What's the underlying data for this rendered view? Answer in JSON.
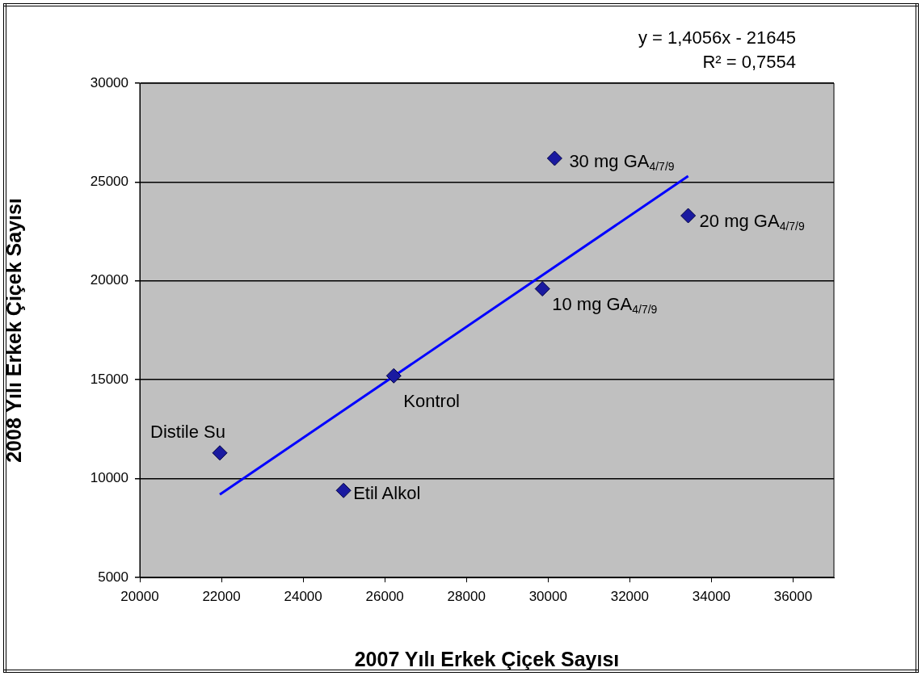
{
  "chart_data": {
    "type": "scatter",
    "xlabel": "2007 Yılı Erkek Çiçek Sayısı",
    "ylabel": "2008 Yılı Erkek Çiçek Sayısı",
    "xlim": [
      20000,
      37000
    ],
    "xticks": [
      20000,
      22000,
      24000,
      26000,
      28000,
      30000,
      32000,
      34000,
      36000
    ],
    "ylim": [
      5000,
      30000
    ],
    "yticks": [
      5000,
      10000,
      15000,
      20000,
      25000,
      30000
    ],
    "grid": "y",
    "legend": false,
    "marker": "diamond",
    "series": [
      {
        "type": "scatter",
        "color": "#1a1aa0",
        "x": [
          21960,
          24990,
          26220,
          29860,
          30160,
          33430
        ],
        "values": [
          11300,
          9400,
          15200,
          19600,
          26200,
          23300
        ]
      },
      {
        "type": "line",
        "color": "#0000ff",
        "marker": "none",
        "x": [
          21960,
          33430
        ],
        "values": [
          9200,
          25300
        ]
      }
    ],
    "annotations": [
      {
        "text": "Distile Su",
        "x": 21960,
        "y": 11300
      },
      {
        "text": "Etil Alkol",
        "x": 24990,
        "y": 9400
      },
      {
        "text": "Kontrol",
        "x": 26220,
        "y": 15200
      },
      {
        "text": "10 mg GA$_{4/7/9}$",
        "x": 29860,
        "y": 19600
      },
      {
        "text": "30 mg GA$_{4/7/9}$",
        "x": 30160,
        "y": 26200
      },
      {
        "text": "20 mg GA$_{4/7/9}$",
        "x": 33430,
        "y": 23300
      },
      "y = 1,4056x - 21645",
      "R² = 0,7554"
    ]
  }
}
